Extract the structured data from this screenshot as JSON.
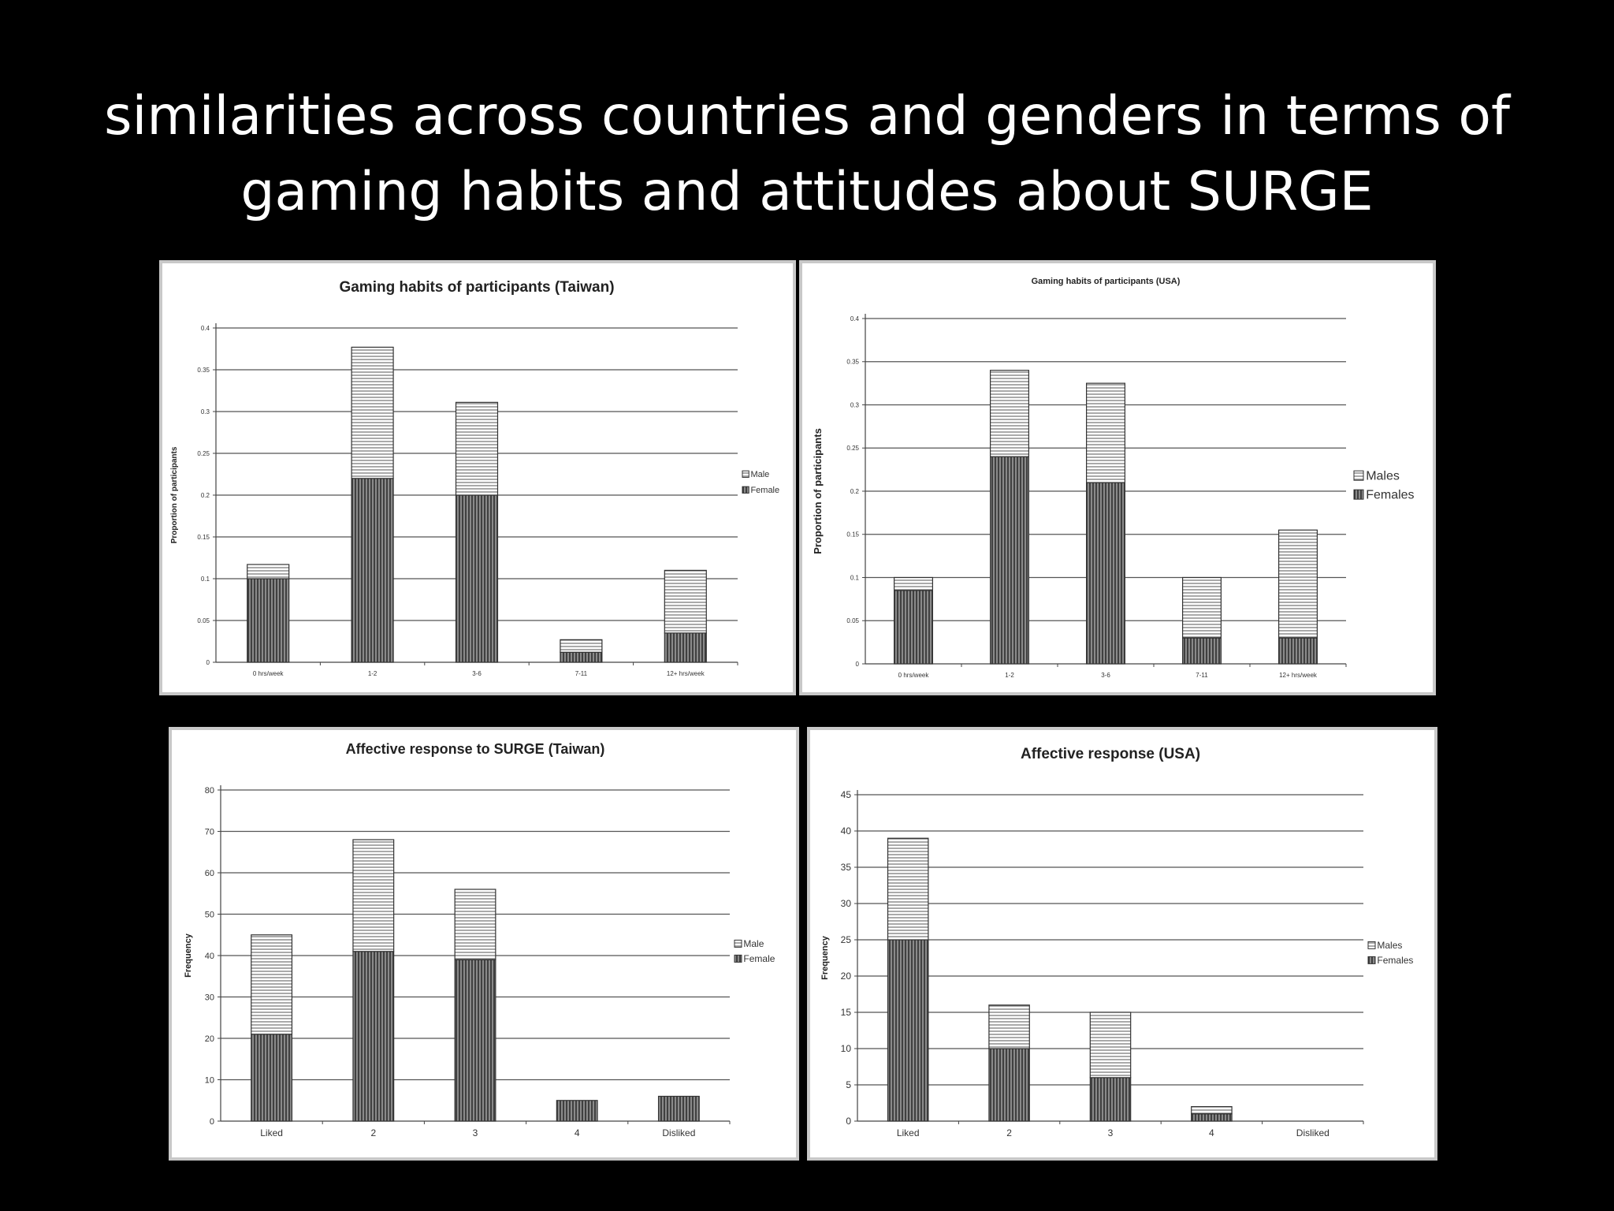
{
  "slide": {
    "title_line1": "similarities across countries and genders in terms of",
    "title_line2": "gaming habits and attitudes about SURGE"
  },
  "colors": {
    "background": "#000000",
    "text": "#ffffff",
    "panel": "#ffffff",
    "bar_stroke": "#333333",
    "grid": "#555555"
  },
  "chart_data": [
    {
      "type": "bar",
      "stacked": true,
      "title": "Gaming habits of participants (Taiwan)",
      "xlabel": "",
      "ylabel": "Proportion of participants",
      "categories": [
        "0 hrs/week",
        "1-2",
        "3-6",
        "7-11",
        "12+ hrs/week"
      ],
      "series": [
        {
          "name": "Female",
          "values": [
            0.1,
            0.22,
            0.2,
            0.012,
            0.035
          ]
        },
        {
          "name": "Male",
          "values": [
            0.017,
            0.157,
            0.111,
            0.015,
            0.075
          ]
        }
      ],
      "ylim": [
        0,
        0.4
      ],
      "yticks": [
        "0",
        "0.05",
        "0.1",
        "0.15",
        "0.2",
        "0.25",
        "0.3",
        "0.35",
        "0.4"
      ],
      "legend_position": "right",
      "grid": true
    },
    {
      "type": "bar",
      "stacked": true,
      "title": "Gaming habits of participants (USA)",
      "xlabel": "",
      "ylabel": "Proportion of participants",
      "categories": [
        "0 hrs/week",
        "1-2",
        "3-6",
        "7-11",
        "12+ hrs/week"
      ],
      "series": [
        {
          "name": "Females",
          "values": [
            0.085,
            0.24,
            0.21,
            0.03,
            0.03
          ]
        },
        {
          "name": "Males",
          "values": [
            0.015,
            0.1,
            0.115,
            0.07,
            0.125
          ]
        }
      ],
      "ylim": [
        0,
        0.4
      ],
      "yticks": [
        "0",
        "0.05",
        "0.1",
        "0.15",
        "0.2",
        "0.25",
        "0.3",
        "0.35",
        "0.4"
      ],
      "legend_position": "right",
      "grid": true
    },
    {
      "type": "bar",
      "stacked": true,
      "title": "Affective response to SURGE (Taiwan)",
      "xlabel": "",
      "ylabel": "Frequency",
      "categories": [
        "Liked",
        "2",
        "3",
        "4",
        "Disliked"
      ],
      "series": [
        {
          "name": "Female",
          "values": [
            21,
            41,
            39,
            5,
            6
          ]
        },
        {
          "name": "Male",
          "values": [
            24,
            27,
            17,
            0,
            0
          ]
        }
      ],
      "ylim": [
        0,
        80
      ],
      "yticks": [
        "0",
        "10",
        "20",
        "30",
        "40",
        "50",
        "60",
        "70",
        "80"
      ],
      "legend_position": "right",
      "grid": true
    },
    {
      "type": "bar",
      "stacked": true,
      "title": "Affective response (USA)",
      "xlabel": "",
      "ylabel": "Frequency",
      "categories": [
        "Liked",
        "2",
        "3",
        "4",
        "Disliked"
      ],
      "series": [
        {
          "name": "Females",
          "values": [
            25,
            10,
            6,
            1,
            0
          ]
        },
        {
          "name": "Males",
          "values": [
            14,
            6,
            9,
            1,
            0
          ]
        }
      ],
      "ylim": [
        0,
        45
      ],
      "yticks": [
        "0",
        "5",
        "10",
        "15",
        "20",
        "25",
        "30",
        "35",
        "40",
        "45"
      ],
      "legend_position": "right",
      "grid": true
    }
  ]
}
